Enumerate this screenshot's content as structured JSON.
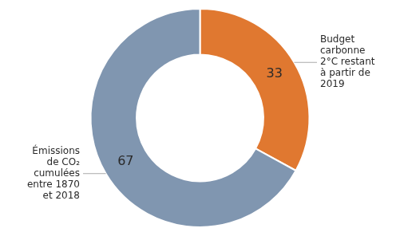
{
  "chart_data": {
    "type": "doughnut",
    "categories": [
      "Budget\ncarbonne\n2°C restant\nà partir de\n2019",
      "Émissions\nde CO₂\ncumulées\nentre 1870\net 2018"
    ],
    "values": [
      33,
      67
    ],
    "colors": [
      "#e07830",
      "#8096b0"
    ],
    "data_labels": true
  }
}
